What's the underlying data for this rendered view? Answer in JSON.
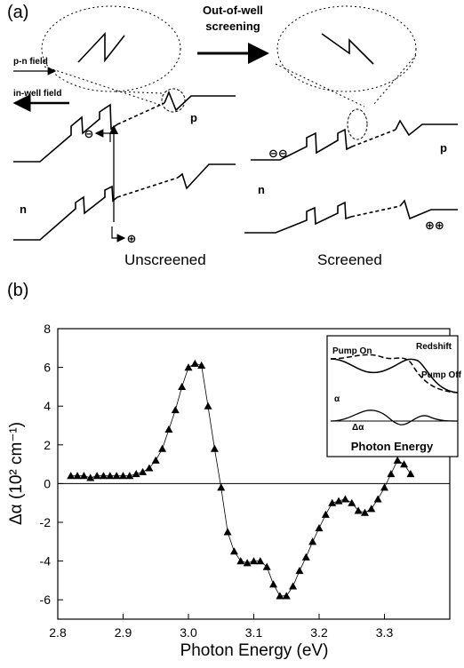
{
  "panel_a": {
    "label": "(a)",
    "arrow_label": [
      "Out-of-well",
      "screening"
    ],
    "pn_field": "p-n field",
    "inwell_field": "in-well field",
    "left_p": "p",
    "left_n": "n",
    "left_caption": "Unscreened",
    "right_p": "p",
    "right_n": "n",
    "right_caption": "Screened",
    "electron": "⊖",
    "hole": "⊕",
    "electrons": "⊖⊖",
    "holes": "⊕⊕"
  },
  "chart_data": {
    "type": "scatter",
    "panel_label": "(b)",
    "x_label": "Photon Energy (eV)",
    "y_label": "Δα (10² cm⁻¹)",
    "xlim": [
      2.8,
      3.4
    ],
    "ylim": [
      -7,
      8
    ],
    "xticks": [
      2.8,
      2.9,
      {
        "value": 3,
        "label": "3.0"
      },
      3.1,
      3.2,
      3.3
    ],
    "yticks": [
      -6,
      -4,
      -2,
      0,
      2,
      4,
      6,
      8
    ],
    "color": "#000000",
    "x": [
      2.82,
      2.83,
      2.84,
      2.85,
      2.86,
      2.87,
      2.88,
      2.89,
      2.9,
      2.91,
      2.92,
      2.93,
      2.94,
      2.95,
      2.96,
      2.97,
      2.98,
      2.99,
      3.0,
      3.01,
      3.02,
      3.03,
      3.04,
      3.05,
      3.06,
      3.07,
      3.08,
      3.09,
      3.1,
      3.11,
      3.12,
      3.13,
      3.14,
      3.15,
      3.16,
      3.17,
      3.18,
      3.19,
      3.2,
      3.21,
      3.22,
      3.23,
      3.24,
      3.25,
      3.26,
      3.27,
      3.28,
      3.29,
      3.3,
      3.31,
      3.32,
      3.33,
      3.34
    ],
    "values": [
      0.4,
      0.4,
      0.4,
      0.3,
      0.4,
      0.4,
      0.4,
      0.4,
      0.4,
      0.4,
      0.5,
      0.6,
      0.8,
      1.2,
      1.8,
      2.8,
      3.8,
      5.0,
      6.0,
      6.2,
      6.1,
      4.0,
      1.8,
      -0.2,
      -2.5,
      -3.5,
      -4.0,
      -4.1,
      -4.0,
      -4.0,
      -4.3,
      -5.2,
      -5.8,
      -5.8,
      -5.3,
      -4.5,
      -3.8,
      -3.0,
      -2.3,
      -1.6,
      -1.0,
      -0.9,
      -0.8,
      -1.0,
      -1.4,
      -1.5,
      -1.3,
      -0.8,
      -0.2,
      0.5,
      1.2,
      1.0,
      0.5
    ],
    "inset": {
      "title": "Redshift",
      "pump_on": "Pump On",
      "pump_off": "Pump Off",
      "y_label": "α",
      "delta": "Δα",
      "x_label": "Photon Energy"
    }
  }
}
